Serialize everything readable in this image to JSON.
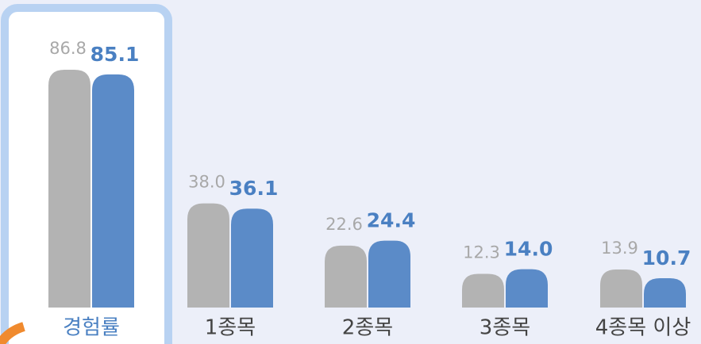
{
  "chart_data": {
    "type": "bar",
    "categories": [
      "경험률",
      "1종목",
      "2종목",
      "3종목",
      "4종목 이상"
    ],
    "series": [
      {
        "color": "#b3b3b3",
        "values": [
          86.8,
          38.0,
          22.6,
          12.3,
          13.9
        ],
        "value_labels": [
          "86.8",
          "38.0",
          "22.6",
          "12.3",
          "13.9"
        ]
      },
      {
        "color": "#5b8bc8",
        "values": [
          85.1,
          36.1,
          24.4,
          14.0,
          10.7
        ],
        "value_labels": [
          "85.1",
          "36.1",
          "24.4",
          "14.0",
          "10.7"
        ]
      }
    ]
  }
}
